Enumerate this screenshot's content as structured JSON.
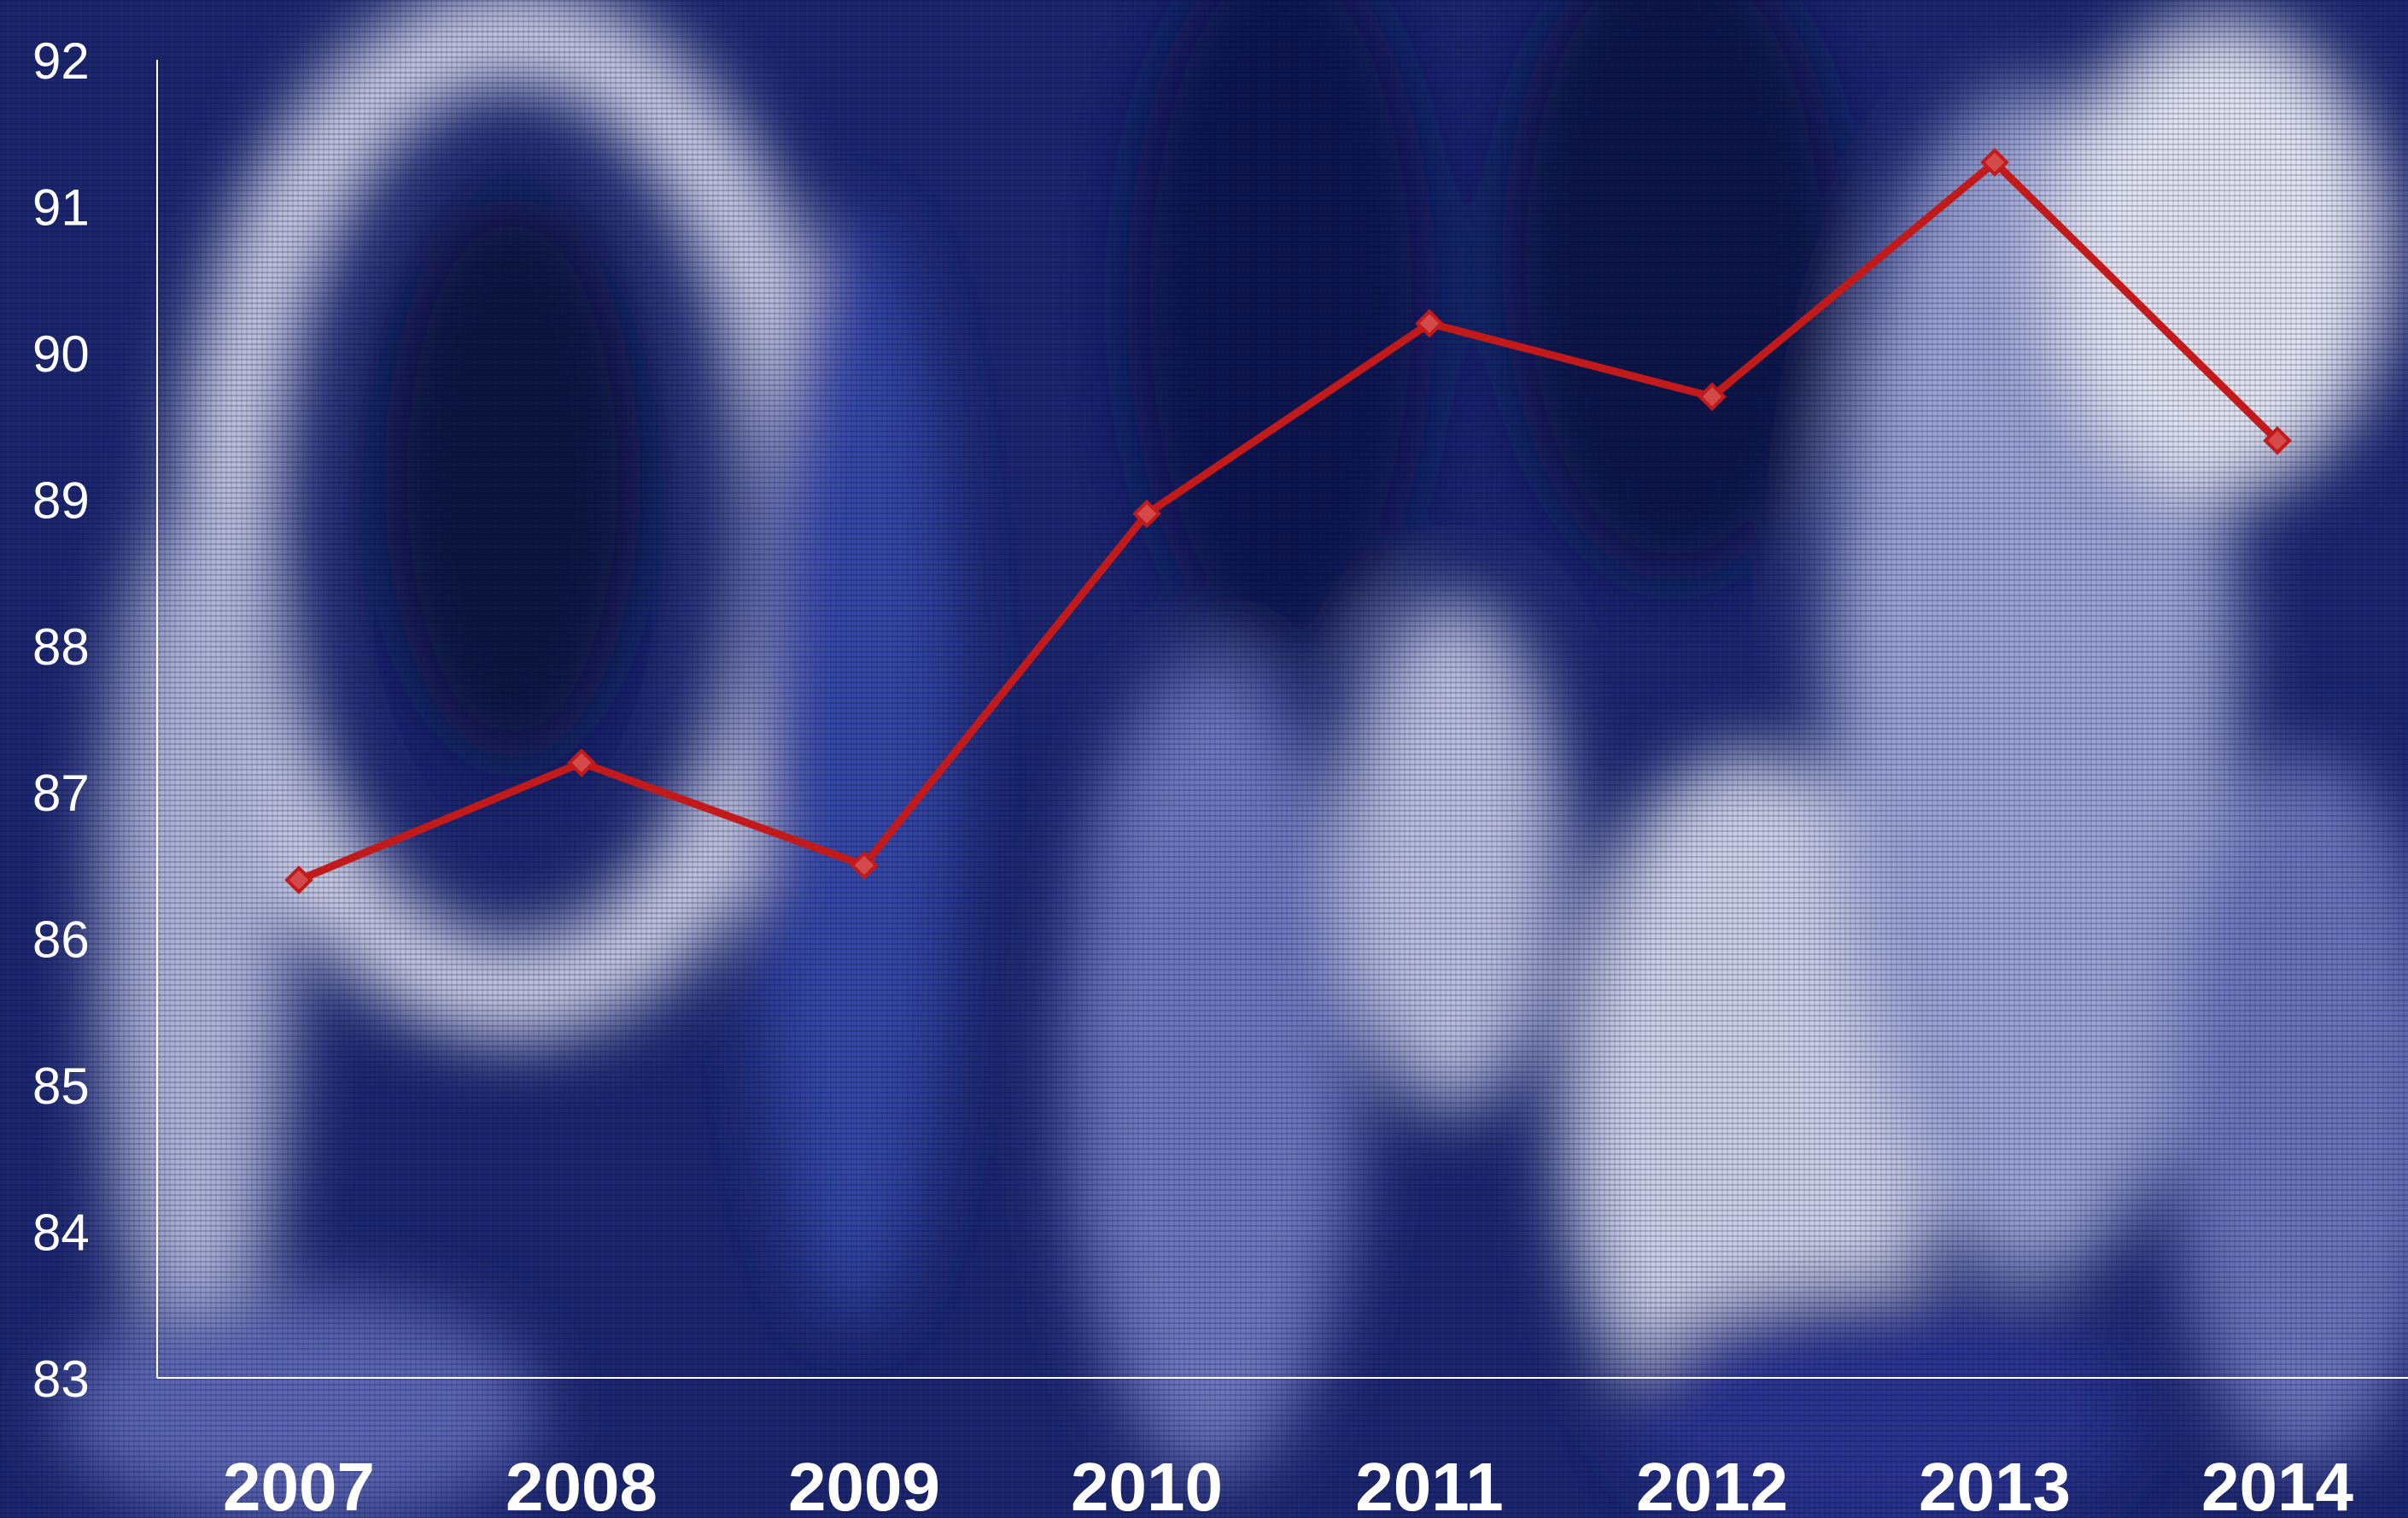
{
  "colors": {
    "line": "#c21a1a",
    "marker_fill": "#d24a4a",
    "axis": "#ffffff",
    "background_dark": "#111a55",
    "background_mid": "#2b3a9c",
    "background_light": "#cfd4ea"
  },
  "chart_data": {
    "type": "line",
    "title": "",
    "xlabel": "",
    "ylabel": "",
    "categories": [
      "2007",
      "2008",
      "2009",
      "2010",
      "2011",
      "2012",
      "2013",
      "2014"
    ],
    "series": [
      {
        "values": [
          86.4,
          87.2,
          86.5,
          88.9,
          90.2,
          89.7,
          91.3,
          89.4
        ]
      }
    ],
    "ylim": [
      83,
      92
    ],
    "yticks": [
      "83",
      "84",
      "85",
      "86",
      "87",
      "88",
      "89",
      "90",
      "91",
      "92"
    ],
    "grid": false,
    "legend": "none",
    "marker": "diamond",
    "background": "photographic blue-and-white abstract texture"
  }
}
